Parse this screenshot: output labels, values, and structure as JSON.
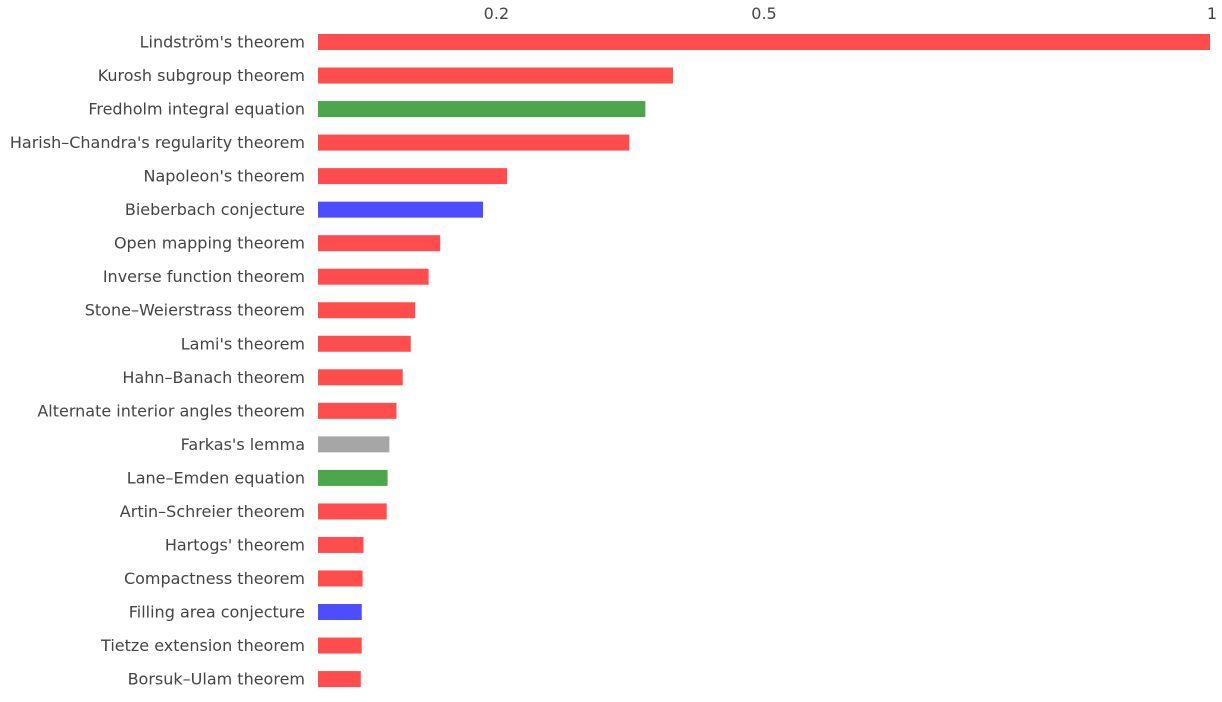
{
  "chart_data": {
    "type": "bar",
    "orientation": "horizontal",
    "x_ticks": [
      {
        "value": 0.2,
        "label": "0.2"
      },
      {
        "value": 0.5,
        "label": "0.5"
      },
      {
        "value": 1,
        "label": "1"
      }
    ],
    "xlim": [
      0,
      1
    ],
    "grid": false,
    "legend": "none",
    "bars": [
      {
        "label": "Lindström's theorem",
        "value": 1.0,
        "color": "#ff4d4d"
      },
      {
        "label": "Kurosh subgroup theorem",
        "value": 0.398,
        "color": "#ff4d4d"
      },
      {
        "label": "Fredholm integral equation",
        "value": 0.367,
        "color": "#4ca64c"
      },
      {
        "label": "Harish–Chandra's regularity theorem",
        "value": 0.349,
        "color": "#ff4d4d"
      },
      {
        "label": "Napoleon's theorem",
        "value": 0.212,
        "color": "#ff4d4d"
      },
      {
        "label": "Bieberbach conjecture",
        "value": 0.185,
        "color": "#4d4dff"
      },
      {
        "label": "Open mapping theorem",
        "value": 0.137,
        "color": "#ff4d4d"
      },
      {
        "label": "Inverse function theorem",
        "value": 0.124,
        "color": "#ff4d4d"
      },
      {
        "label": "Stone–Weierstrass theorem",
        "value": 0.109,
        "color": "#ff4d4d"
      },
      {
        "label": "Lami's theorem",
        "value": 0.104,
        "color": "#ff4d4d"
      },
      {
        "label": "Hahn–Banach theorem",
        "value": 0.095,
        "color": "#ff4d4d"
      },
      {
        "label": "Alternate interior angles theorem",
        "value": 0.088,
        "color": "#ff4d4d"
      },
      {
        "label": "Farkas's lemma",
        "value": 0.08,
        "color": "#a6a6a6"
      },
      {
        "label": "Lane–Emden equation",
        "value": 0.078,
        "color": "#4ca64c"
      },
      {
        "label": "Artin–Schreier theorem",
        "value": 0.077,
        "color": "#ff4d4d"
      },
      {
        "label": "Hartogs' theorem",
        "value": 0.051,
        "color": "#ff4d4d"
      },
      {
        "label": "Compactness theorem",
        "value": 0.05,
        "color": "#ff4d4d"
      },
      {
        "label": "Filling area conjecture",
        "value": 0.049,
        "color": "#4d4dff"
      },
      {
        "label": "Tietze extension theorem",
        "value": 0.049,
        "color": "#ff4d4d"
      },
      {
        "label": "Borsuk–Ulam theorem",
        "value": 0.048,
        "color": "#ff4d4d"
      }
    ]
  }
}
